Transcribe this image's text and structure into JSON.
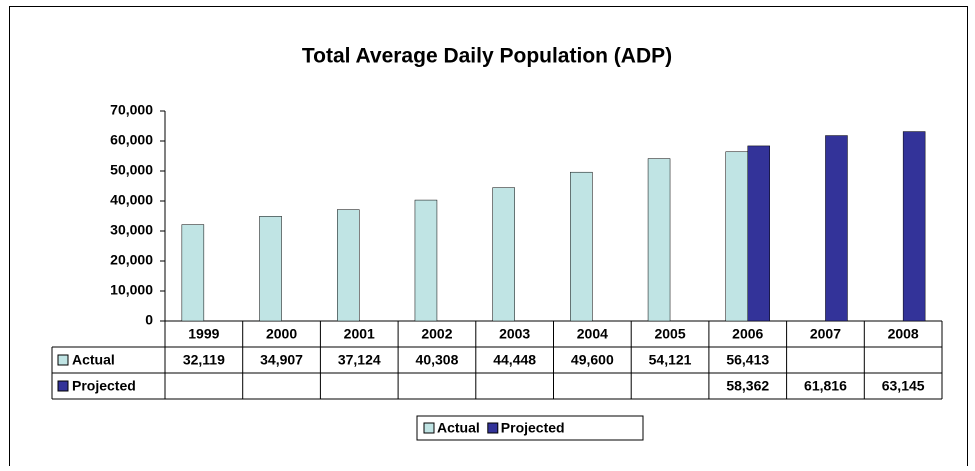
{
  "chart_data": {
    "type": "bar",
    "title": "Total Average Daily Population (ADP)",
    "categories": [
      "1999",
      "2000",
      "2001",
      "2002",
      "2003",
      "2004",
      "2005",
      "2006",
      "2007",
      "2008"
    ],
    "series": [
      {
        "name": "Actual",
        "color": "#c0e4e4",
        "values": [
          32119,
          34907,
          37124,
          40308,
          44448,
          49600,
          54121,
          56413,
          null,
          null
        ],
        "value_labels": [
          "32,119",
          "34,907",
          "37,124",
          "40,308",
          "44,448",
          "49,600",
          "54,121",
          "56,413",
          null,
          null
        ]
      },
      {
        "name": "Projected",
        "color": "#333399",
        "values": [
          null,
          null,
          null,
          null,
          null,
          null,
          null,
          58362,
          61816,
          63145
        ],
        "value_labels": [
          null,
          null,
          null,
          null,
          null,
          null,
          null,
          "58,362",
          "61,816",
          "63,145"
        ]
      }
    ],
    "ylim": [
      0,
      70000
    ],
    "yticks": [
      0,
      {
        "value": 10000,
        "label": "10,000"
      },
      {
        "value": 20000,
        "label": "20,000"
      },
      {
        "value": 30000,
        "label": "30,000"
      },
      {
        "value": 40000,
        "label": "40,000"
      },
      {
        "value": 50000,
        "label": "50,000"
      },
      {
        "value": 60000,
        "label": "60,000"
      },
      {
        "value": 70000,
        "label": "70,000"
      }
    ],
    "legend": "bottom"
  }
}
